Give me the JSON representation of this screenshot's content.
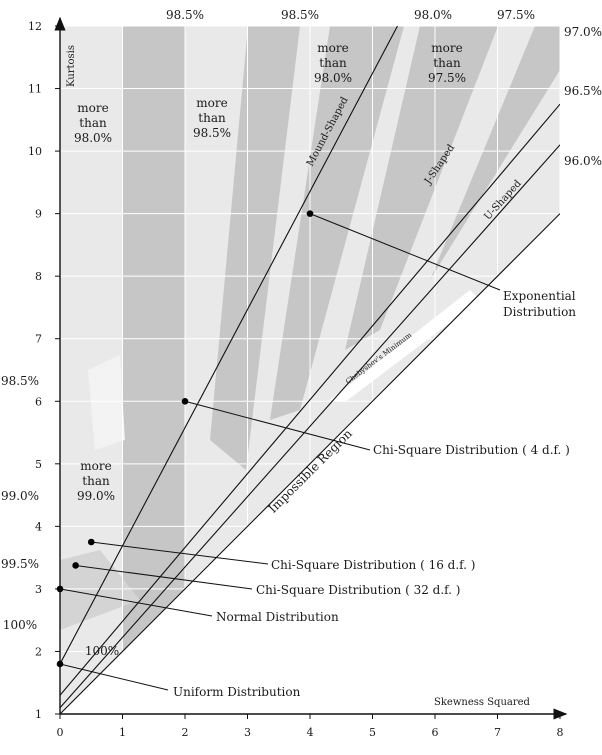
{
  "chart_data": {
    "type": "diagram",
    "x_axis": {
      "label": "Skewness Squared",
      "range": [
        0,
        8
      ],
      "ticks": [
        "0",
        "1",
        "2",
        "3",
        "4",
        "5",
        "6",
        "7",
        "8"
      ]
    },
    "y_axis": {
      "label": "Kurtosis",
      "range": [
        1,
        12
      ],
      "ticks": [
        "1",
        "2",
        "3",
        "4",
        "5",
        "6",
        "7",
        "8",
        "9",
        "10",
        "11",
        "12"
      ]
    },
    "boundary_lines": [
      {
        "name": "Mound-Shaped",
        "points": [
          [
            0,
            1.8
          ],
          [
            5.4,
            12
          ]
        ]
      },
      {
        "name": "J-Shaped",
        "points": [
          [
            0,
            1.3
          ],
          [
            8,
            10.75
          ]
        ]
      },
      {
        "name": "U-Shaped",
        "points": [
          [
            0,
            1.1
          ],
          [
            8,
            10.1
          ]
        ]
      },
      {
        "name": "Impossible Region",
        "points": [
          [
            0,
            1
          ],
          [
            8,
            9
          ]
        ]
      }
    ],
    "distributions": [
      {
        "name": "Exponential Distribution",
        "x": 4,
        "y": 9
      },
      {
        "name": "Chi-Square Distribution ( 4 d.f. )",
        "x": 2,
        "y": 6
      },
      {
        "name": "Chi-Square Distribution ( 16 d.f. )",
        "x": 0.5,
        "y": 3.75
      },
      {
        "name": "Chi-Square Distribution ( 32 d.f. )",
        "x": 0.25,
        "y": 3.375
      },
      {
        "name": "Normal Distribution",
        "x": 0,
        "y": 3
      },
      {
        "name": "Uniform Distribution",
        "x": 0,
        "y": 1.8
      }
    ],
    "labels": {
      "exponential": [
        "Exponential",
        "Distribution"
      ],
      "chi4": "Chi-Square Distribution ( 4 d.f. )",
      "chi16": "Chi-Square Distribution ( 16 d.f. )",
      "chi32": "Chi-Square Distribution ( 32 d.f. )",
      "normal": "Normal Distribution",
      "uniform": "Uniform Distribution",
      "chebyshev": "Chebyshev's Minimum",
      "impossible": "Impossible Region",
      "mound": "Mound-Shaped",
      "jshaped": "J-Shaped",
      "ushaped": "U-Shaped"
    },
    "top_percent_labels": [
      "98.5%",
      "98.5%",
      "98.0%",
      "97.5%"
    ],
    "right_percent_labels": [
      "97.0%",
      "96.5%",
      "96.0%"
    ],
    "left_percent_labels": [
      "98.5%",
      "99.0%",
      "99.5%",
      "100%"
    ],
    "region_labels": [
      [
        "more",
        "than",
        "98.0%"
      ],
      [
        "more",
        "than",
        "98.5%"
      ],
      [
        "more",
        "than",
        "98.0%"
      ],
      [
        "more",
        "than",
        "97.5%"
      ],
      [
        "more",
        "than",
        "99.0%"
      ]
    ],
    "inner_label_100": "100%"
  }
}
